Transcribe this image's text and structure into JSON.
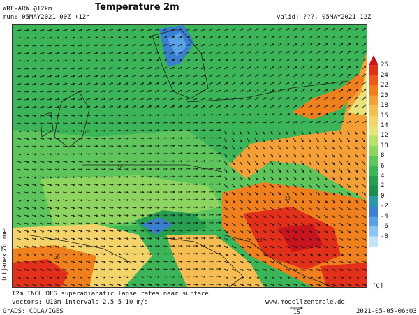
{
  "header": {
    "model": "WRF-ARW @12km",
    "run": "run: 05MAY2021 00Z +12h",
    "title": "Temperature 2m",
    "valid": "valid: ???, 05MAY2021 12Z"
  },
  "legend": {
    "unit": "[C]",
    "levels": [
      {
        "value": "26",
        "color": "#c8141e"
      },
      {
        "value": "24",
        "color": "#e2301a"
      },
      {
        "value": "22",
        "color": "#ee5a1e"
      },
      {
        "value": "20",
        "color": "#f0801e"
      },
      {
        "value": "18",
        "color": "#f4a036"
      },
      {
        "value": "16",
        "color": "#f6bd52"
      },
      {
        "value": "14",
        "color": "#f4d46a"
      },
      {
        "value": "12",
        "color": "#e8e27a"
      },
      {
        "value": "10",
        "color": "#b8e06a"
      },
      {
        "value": "8",
        "color": "#8ed460"
      },
      {
        "value": "6",
        "color": "#5ec45c"
      },
      {
        "value": "4",
        "color": "#3cb458"
      },
      {
        "value": "2",
        "color": "#26a050"
      },
      {
        "value": "0",
        "color": "#1e8e4c"
      },
      {
        "value": "-2",
        "color": "#2a9aa8"
      },
      {
        "value": "-4",
        "color": "#3a7fd0"
      },
      {
        "value": "-6",
        "color": "#5aa2e6"
      },
      {
        "value": "-8",
        "color": "#8ec6f2"
      }
    ],
    "extra_color": "#c6e4f8"
  },
  "footer": {
    "note1": "T2m INCLUDES superadiabatic lapse rates near surface",
    "note2": "vectors: U10m intervals 2.5 5 10 m/s",
    "website": "www.modellzentrale.de",
    "grads": "GrADS: COLA/IGES",
    "timestamp": "2021-05-05-06:03",
    "ref_vector": "15"
  },
  "author": "(c) Janek Zimmer",
  "map_labels": {
    "t1": "10",
    "t2": "10",
    "t3": "10",
    "t4": "20",
    "t5": "20",
    "t6": "20"
  }
}
